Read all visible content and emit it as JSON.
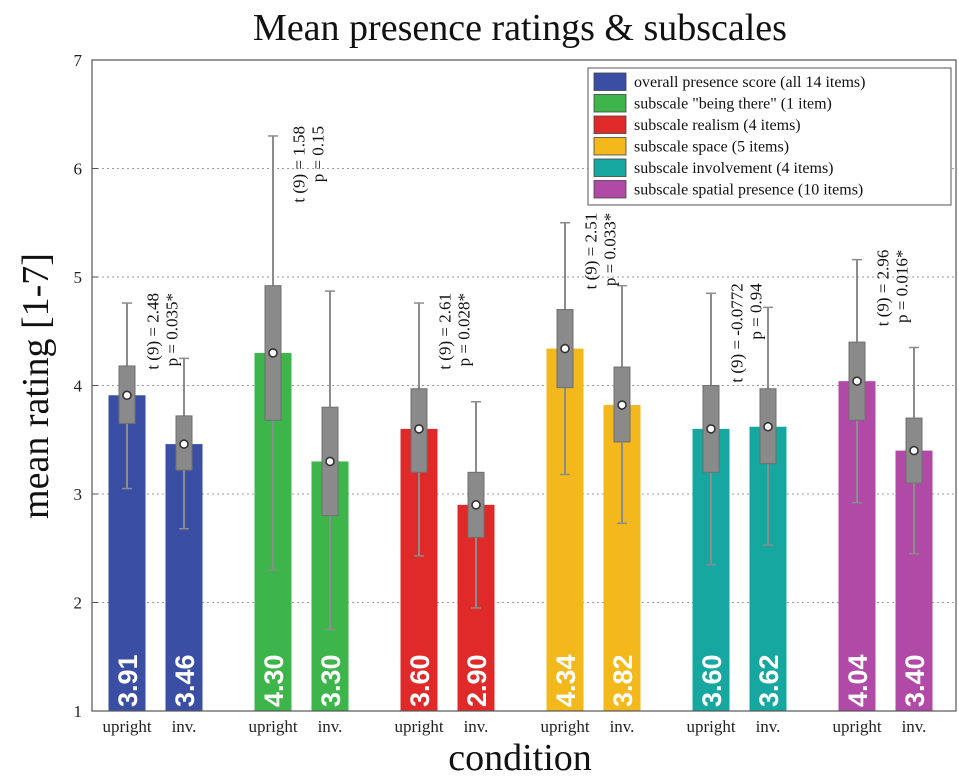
{
  "chart_data": {
    "type": "bar",
    "title": "Mean presence ratings & subscales",
    "xlabel": "condition",
    "ylabel": "mean rating [1-7]",
    "ylim": [
      1,
      7
    ],
    "yticks": [
      1,
      2,
      3,
      4,
      5,
      6,
      7
    ],
    "grid": true,
    "legend_position": "top-right",
    "conditions": [
      "upright",
      "inv."
    ],
    "series": [
      {
        "name": "overall presence score (all 14 items)",
        "color": "#3a4fa3",
        "values": [
          3.91,
          3.46
        ],
        "value_labels": [
          "3.91",
          "3.46"
        ],
        "box_low": [
          3.65,
          3.22
        ],
        "box_high": [
          4.18,
          3.72
        ],
        "whisker_low": [
          3.05,
          2.68
        ],
        "whisker_high": [
          4.76,
          4.25
        ],
        "stat_t": "t (9) = 2.48",
        "stat_p": "p = 0.035*"
      },
      {
        "name": "subscale \"being there\" (1 item)",
        "color": "#3db54a",
        "values": [
          4.3,
          3.3
        ],
        "value_labels": [
          "4.30",
          "3.30"
        ],
        "box_low": [
          3.68,
          2.8
        ],
        "box_high": [
          4.92,
          3.8
        ],
        "whisker_low": [
          2.3,
          1.75
        ],
        "whisker_high": [
          6.3,
          4.87
        ],
        "stat_t": "t (9) = 1.58",
        "stat_p": "p = 0.15"
      },
      {
        "name": "subscale realism (4 items)",
        "color": "#e02a2a",
        "values": [
          3.6,
          2.9
        ],
        "value_labels": [
          "3.60",
          "2.90"
        ],
        "box_low": [
          3.2,
          2.6
        ],
        "box_high": [
          3.97,
          3.2
        ],
        "whisker_low": [
          2.43,
          1.95
        ],
        "whisker_high": [
          4.76,
          3.85
        ],
        "stat_t": "t (9) = 2.61",
        "stat_p": "p = 0.028*"
      },
      {
        "name": "subscale space (5 items)",
        "color": "#f2b81c",
        "values": [
          4.34,
          3.82
        ],
        "value_labels": [
          "4.34",
          "3.82"
        ],
        "box_low": [
          3.98,
          3.48
        ],
        "box_high": [
          4.7,
          4.17
        ],
        "whisker_low": [
          3.18,
          2.73
        ],
        "whisker_high": [
          5.5,
          4.92
        ],
        "stat_t": "t (9) = 2.51",
        "stat_p": "p = 0.033*"
      },
      {
        "name": "subscale involvement (4 items)",
        "color": "#16a8a0",
        "values": [
          3.6,
          3.62
        ],
        "value_labels": [
          "3.60",
          "3.62"
        ],
        "box_low": [
          3.2,
          3.28
        ],
        "box_high": [
          4.0,
          3.97
        ],
        "whisker_low": [
          2.35,
          2.53
        ],
        "whisker_high": [
          4.85,
          4.72
        ],
        "stat_t": "t (9) = -0.0772",
        "stat_p": "p = 0.94"
      },
      {
        "name": "subscale spatial presence (10 items)",
        "color": "#b04aa6",
        "values": [
          4.04,
          3.4
        ],
        "value_labels": [
          "4.04",
          "3.40"
        ],
        "box_low": [
          3.68,
          3.1
        ],
        "box_high": [
          4.4,
          3.7
        ],
        "whisker_low": [
          2.92,
          2.45
        ],
        "whisker_high": [
          5.16,
          4.35
        ],
        "stat_t": "t (9) = 2.96",
        "stat_p": "p = 0.016*"
      }
    ]
  }
}
